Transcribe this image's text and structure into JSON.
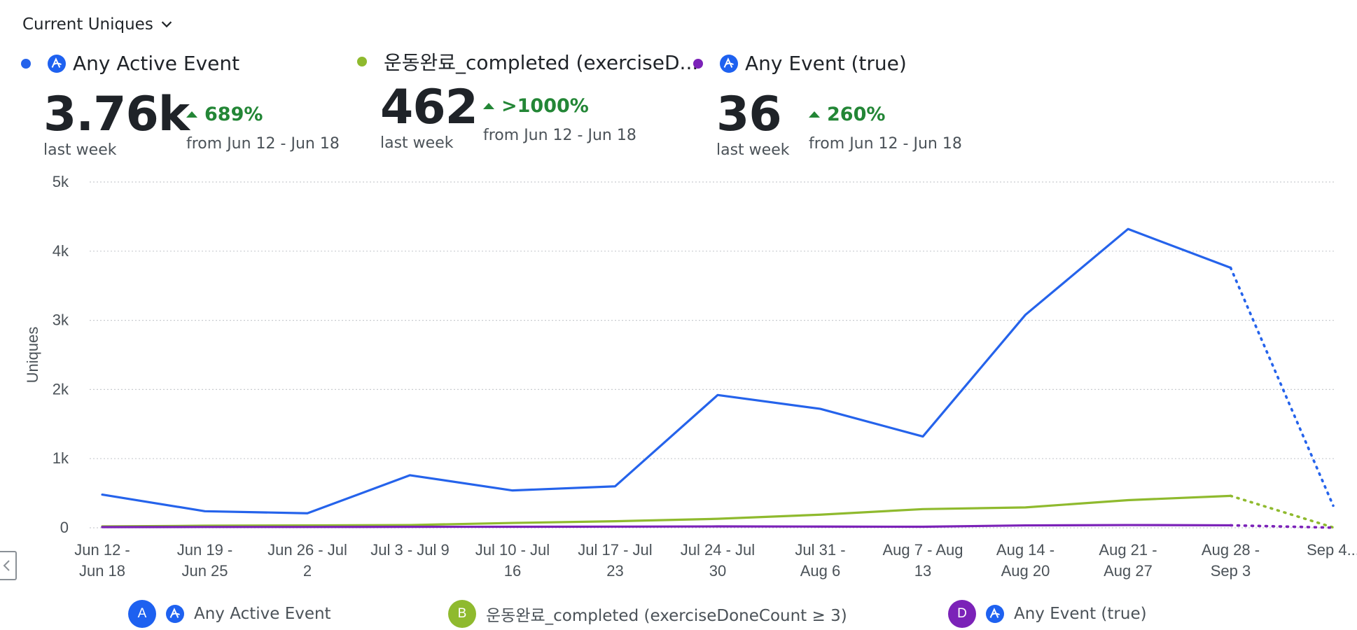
{
  "dropdown": {
    "label": "Current Uniques"
  },
  "metrics": [
    {
      "letter": "A",
      "name": "Any Active Event",
      "value": "3.76k",
      "period": "last week",
      "delta": "689%",
      "from": "from Jun 12 - Jun 18",
      "color": "#2563eb"
    },
    {
      "letter": "B",
      "name": "운동완료_completed (exerciseD...",
      "value": "462",
      "period": "last week",
      "delta": ">1000%",
      "from": "from Jun 12 - Jun 18",
      "color": "#8fba2e"
    },
    {
      "letter": "D",
      "name": "Any Event (true)",
      "value": "36",
      "period": "last week",
      "delta": "260%",
      "from": "from Jun 12 - Jun 18",
      "color": "#7b22b8"
    }
  ],
  "legend": [
    {
      "letter": "A",
      "label": "Any Active Event"
    },
    {
      "letter": "B",
      "label": "운동완료_completed (exerciseDoneCount ≥ 3)"
    },
    {
      "letter": "D",
      "label": "Any Event (true)"
    }
  ],
  "chart_data": {
    "type": "line",
    "ylabel": "Uniques",
    "xlabel": "",
    "ylim": [
      0,
      5000
    ],
    "y_ticks": [
      "0",
      "1k",
      "2k",
      "3k",
      "4k",
      "5k"
    ],
    "grid": true,
    "categories": [
      [
        "Jun 12 -",
        "Jun 18"
      ],
      [
        "Jun 19 -",
        "Jun 25"
      ],
      [
        "Jun 26 - Jul",
        "2"
      ],
      [
        "Jul 3 - Jul 9",
        ""
      ],
      [
        "Jul 10 - Jul",
        "16"
      ],
      [
        "Jul 17 - Jul",
        "23"
      ],
      [
        "Jul 24 - Jul",
        "30"
      ],
      [
        "Jul 31 -",
        "Aug 6"
      ],
      [
        "Aug 7 - Aug",
        "13"
      ],
      [
        "Aug 14 -",
        "Aug 20"
      ],
      [
        "Aug 21 -",
        "Aug 27"
      ],
      [
        "Aug 28 -",
        "Sep 3"
      ],
      [
        "Sep 4...",
        ""
      ]
    ],
    "incomplete_from_index": 11,
    "series": [
      {
        "name": "Any Active Event",
        "color": "#2563eb",
        "values": [
          480,
          240,
          210,
          760,
          540,
          600,
          1920,
          1720,
          1320,
          3080,
          4320,
          3760,
          320
        ]
      },
      {
        "name": "운동완료_completed (exerciseDoneCount ≥ 3)",
        "color": "#8fba2e",
        "values": [
          20,
          30,
          35,
          40,
          70,
          95,
          130,
          190,
          270,
          295,
          400,
          462,
          5
        ]
      },
      {
        "name": "Any Event (true)",
        "color": "#7b22b8",
        "values": [
          10,
          12,
          12,
          14,
          15,
          17,
          20,
          18,
          15,
          35,
          40,
          36,
          2
        ]
      }
    ]
  }
}
